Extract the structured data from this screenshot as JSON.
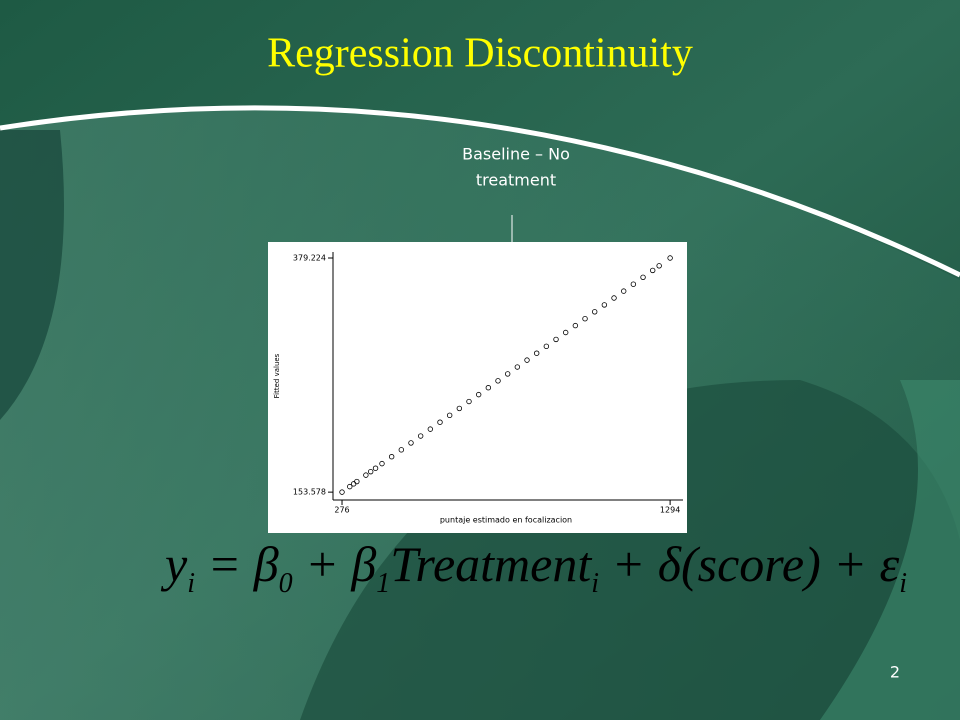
{
  "title": "Regression Discontinuity",
  "callout": [
    "Baseline – No",
    "treatment"
  ],
  "equation": [
    "y",
    "i",
    " = ",
    "β",
    "0",
    " + ",
    "β",
    "1",
    "Treatment",
    "i",
    " + δ(score) + ",
    "ε",
    "i"
  ],
  "page_number": "2",
  "chart_data": {
    "type": "scatter",
    "x_label": "puntaje estimado en focalizacion",
    "y_label": "Fitted values",
    "x": [
      276,
      300,
      312,
      322,
      350,
      365,
      380,
      400,
      430,
      460,
      490,
      520,
      550,
      580,
      610,
      640,
      670,
      700,
      730,
      760,
      790,
      820,
      850,
      880,
      910,
      940,
      970,
      1000,
      1030,
      1060,
      1090,
      1120,
      1150,
      1180,
      1210,
      1240,
      1260,
      1294
    ],
    "values": [
      153.58,
      158.9,
      161.56,
      163.77,
      169.98,
      173.31,
      176.63,
      181.06,
      187.71,
      194.36,
      201.01,
      207.66,
      214.31,
      220.96,
      227.61,
      234.26,
      240.91,
      247.56,
      254.21,
      260.86,
      267.51,
      274.16,
      280.81,
      287.46,
      294.11,
      300.76,
      307.41,
      314.06,
      320.71,
      327.36,
      334.01,
      340.66,
      347.31,
      353.96,
      360.61,
      367.26,
      371.69,
      379.22
    ],
    "color": "#000000",
    "xlim": [
      248,
      1334
    ],
    "ylim": [
      146,
      385
    ],
    "xticks": [
      276,
      1294
    ],
    "yticks": [
      153.578,
      379.224
    ]
  }
}
